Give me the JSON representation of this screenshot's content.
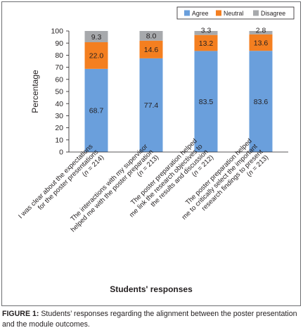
{
  "chart_data": {
    "type": "bar",
    "stacked": true,
    "categories": [
      [
        "I was clear about the expectations",
        "for the poster presentations",
        "(n = 214)"
      ],
      [
        "The interactions with my supervisor",
        "helped me with the poster preparation",
        "(n = 213)"
      ],
      [
        "The poster preparation helped",
        "me link the research objectives to",
        "the results and discussion",
        "(n = 212)"
      ],
      [
        "The poster preparation helped",
        "me to critically select the important",
        "research findings to present",
        "(n = 213)"
      ]
    ],
    "series": [
      {
        "name": "Agree",
        "color": "#6a9fdc",
        "values": [
          68.7,
          77.4,
          83.5,
          83.6
        ]
      },
      {
        "name": "Neutral",
        "color": "#f47f20",
        "values": [
          22.0,
          14.6,
          13.2,
          13.6
        ]
      },
      {
        "name": "Disagree",
        "color": "#a7a9ac",
        "values": [
          9.3,
          8.0,
          3.3,
          2.8
        ]
      }
    ],
    "value_labels": [
      [
        "68.7",
        "77.4",
        "83.5",
        "83.6"
      ],
      [
        "22.0",
        "14.6",
        "13.2",
        "13.6"
      ],
      [
        "9.3",
        "8.0",
        "3.3",
        "2.8"
      ]
    ],
    "y_ticks": [
      "0",
      "10",
      "20",
      "30",
      "40",
      "50",
      "60",
      "70",
      "80",
      "90",
      "100"
    ],
    "ylim": [
      0,
      100
    ],
    "ylabel": "Percentage",
    "xlabel": "Students' responses",
    "legend_position": "top-right",
    "grid": false
  },
  "caption": {
    "label": "FIGURE 1:",
    "text": " Students’ responses regarding the alignment between the poster presentation and the module outcomes."
  }
}
